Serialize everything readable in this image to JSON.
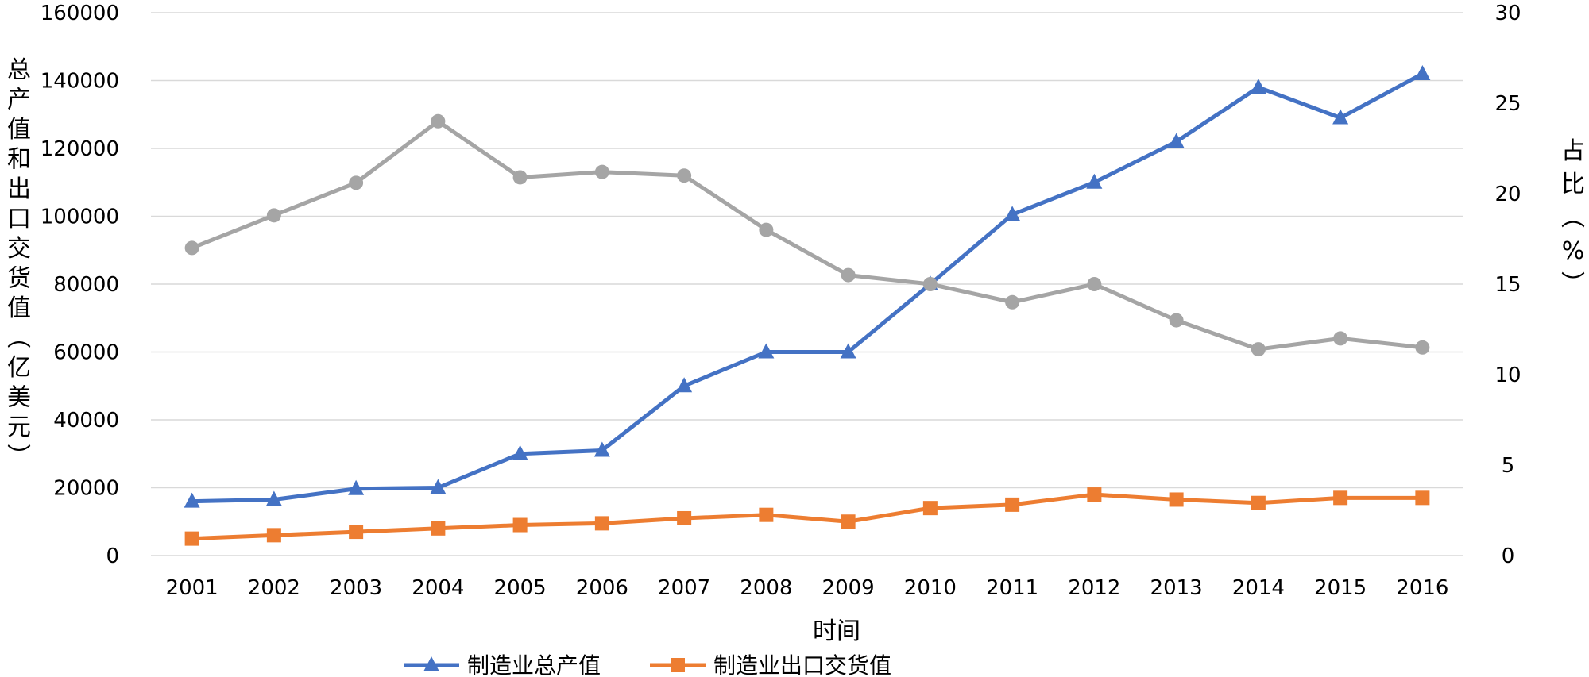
{
  "main": {
    "title": ""
  },
  "chart_data": {
    "type": "line",
    "x": [
      "2001",
      "2002",
      "2003",
      "2004",
      "2005",
      "2006",
      "2007",
      "2008",
      "2009",
      "2010",
      "2011",
      "2012",
      "2013",
      "2014",
      "2015",
      "2016"
    ],
    "xlabel": "时间",
    "ylabel": "总产值和出口交货值(亿美元)",
    "y2label": "占比（%）",
    "ylim": [
      0,
      160000
    ],
    "y2lim": [
      0,
      30
    ],
    "yticks": [
      "0",
      "20000",
      "40000",
      "60000",
      "80000",
      "100000",
      "120000",
      "140000",
      "160000"
    ],
    "y2ticks": [
      "0",
      "5",
      "10",
      "15",
      "20",
      "25",
      "30"
    ],
    "grid": true,
    "legend_position": "bottom",
    "series": [
      {
        "name": "制造业总产值",
        "axis": "left",
        "color": "#4472c4",
        "marker": "triangle",
        "values": [
          16000,
          16500,
          19700,
          20000,
          30000,
          31000,
          50000,
          60000,
          60000,
          80000,
          100500,
          110000,
          122000,
          138000,
          129000,
          142000
        ]
      },
      {
        "name": "制造业出口交货值",
        "axis": "left",
        "color": "#ed7d31",
        "marker": "square",
        "values": [
          5000,
          6000,
          7000,
          8000,
          9000,
          9500,
          11000,
          12000,
          10000,
          14000,
          15000,
          18000,
          16500,
          15500,
          17000,
          17000
        ]
      },
      {
        "axis": "right",
        "color": "#a5a5a5",
        "marker": "circle",
        "values": [
          17,
          18.8,
          20.6,
          24,
          20.9,
          21.2,
          21,
          18,
          15.5,
          15,
          14,
          15,
          13,
          11.4,
          12,
          11.5
        ]
      }
    ]
  }
}
